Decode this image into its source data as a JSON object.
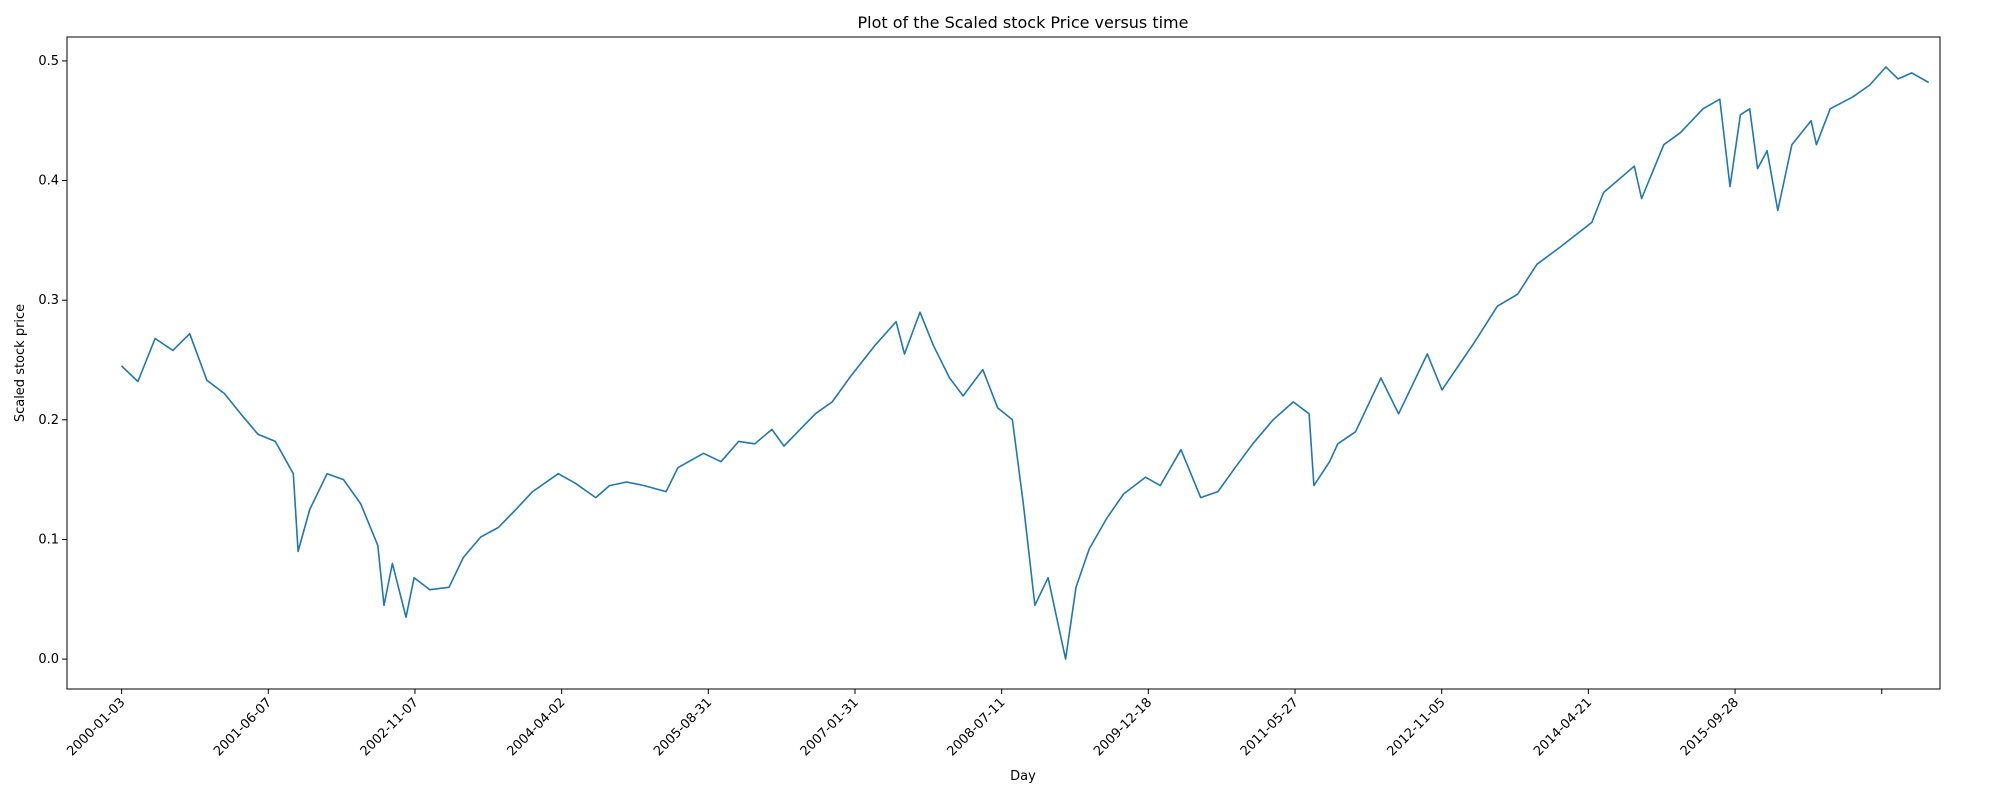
{
  "chart_data": {
    "type": "line",
    "title": "Plot of the Scaled stock Price versus time",
    "xlabel": "Day",
    "ylabel": "Scaled stock price",
    "ylim": [
      -0.025,
      0.52
    ],
    "yticks": [
      "0.0",
      "0.1",
      "0.2",
      "0.3",
      "0.4",
      "0.5"
    ],
    "xticks": [
      "2000-01-03",
      "2001-06-07",
      "2002-11-07",
      "2004-04-02",
      "2005-08-31",
      "2007-01-31",
      "2008-07-11",
      "2009-12-18",
      "2011-05-27",
      "2012-11-05",
      "2014-04-21",
      "2015-09-28",
      ""
    ],
    "xlim": [
      "1999-06-23",
      "2017-09-09"
    ],
    "grid": false,
    "series_color": "#1f77b4",
    "series": [
      {
        "x": [
          "2000-01-03",
          "2000-03-01",
          "2000-05-01",
          "2000-07-03",
          "2000-09-01",
          "2000-11-01",
          "2001-01-02",
          "2001-03-01",
          "2001-05-01",
          "2001-07-02",
          "2001-09-04",
          "2001-09-21",
          "2001-11-01",
          "2002-01-02",
          "2002-03-01",
          "2002-05-01",
          "2002-07-01",
          "2002-07-23",
          "2002-08-22",
          "2002-10-09",
          "2002-11-07",
          "2003-01-02",
          "2003-03-11",
          "2003-05-01",
          "2003-07-01",
          "2003-09-02",
          "2003-11-03",
          "2004-01-02",
          "2004-04-02",
          "2004-06-01",
          "2004-08-13",
          "2004-10-01",
          "2004-12-01",
          "2005-02-01",
          "2005-04-20",
          "2005-06-01",
          "2005-08-31",
          "2005-11-01",
          "2006-01-03",
          "2006-03-01",
          "2006-05-01",
          "2006-06-13",
          "2006-08-01",
          "2006-10-02",
          "2006-12-01",
          "2007-01-31",
          "2007-03-05",
          "2007-05-01",
          "2007-07-16",
          "2007-08-15",
          "2007-10-09",
          "2007-11-26",
          "2008-01-22",
          "2008-03-10",
          "2008-05-19",
          "2008-07-11",
          "2008-09-01",
          "2008-10-10",
          "2008-11-20",
          "2009-01-06",
          "2009-03-09",
          "2009-04-15",
          "2009-06-01",
          "2009-08-03",
          "2009-10-01",
          "2009-12-18",
          "2010-02-08",
          "2010-04-23",
          "2010-07-02",
          "2010-09-01",
          "2010-11-01",
          "2011-01-03",
          "2011-03-16",
          "2011-05-27",
          "2011-07-22",
          "2011-08-08",
          "2011-10-03",
          "2011-11-01",
          "2012-01-03",
          "2012-04-02",
          "2012-06-04",
          "2012-09-14",
          "2012-11-05",
          "2013-01-02",
          "2013-03-01",
          "2013-05-21",
          "2013-08-01",
          "2013-10-08",
          "2014-01-02",
          "2014-04-21",
          "2014-06-02",
          "2014-09-19",
          "2014-10-15",
          "2015-01-02",
          "2015-03-02",
          "2015-05-21",
          "2015-07-20",
          "2015-08-25",
          "2015-10-01",
          "2015-11-03",
          "2015-12-01",
          "2016-01-04",
          "2016-02-11",
          "2016-04-01",
          "2016-06-08",
          "2016-06-27",
          "2016-08-15",
          "2016-11-04",
          "2017-01-03",
          "2017-03-01",
          "2017-04-13",
          "2017-06-01",
          "2017-07-31"
        ],
        "y": [
          0.245,
          0.232,
          0.268,
          0.258,
          0.272,
          0.233,
          0.222,
          0.205,
          0.188,
          0.182,
          0.155,
          0.09,
          0.125,
          0.155,
          0.15,
          0.13,
          0.095,
          0.045,
          0.08,
          0.035,
          0.068,
          0.058,
          0.06,
          0.085,
          0.102,
          0.11,
          0.125,
          0.14,
          0.155,
          0.147,
          0.135,
          0.145,
          0.148,
          0.145,
          0.14,
          0.16,
          0.172,
          0.165,
          0.182,
          0.18,
          0.192,
          0.178,
          0.19,
          0.205,
          0.215,
          0.235,
          0.245,
          0.262,
          0.282,
          0.255,
          0.29,
          0.262,
          0.235,
          0.22,
          0.242,
          0.21,
          0.2,
          0.13,
          0.045,
          0.068,
          0.0,
          0.06,
          0.092,
          0.118,
          0.138,
          0.152,
          0.145,
          0.175,
          0.135,
          0.14,
          0.16,
          0.18,
          0.2,
          0.215,
          0.205,
          0.145,
          0.165,
          0.18,
          0.19,
          0.235,
          0.205,
          0.255,
          0.225,
          0.245,
          0.265,
          0.295,
          0.305,
          0.33,
          0.345,
          0.365,
          0.39,
          0.412,
          0.385,
          0.43,
          0.44,
          0.46,
          0.468,
          0.395,
          0.455,
          0.46,
          0.41,
          0.425,
          0.375,
          0.43,
          0.45,
          0.43,
          0.46,
          0.47,
          0.48,
          0.495,
          0.485,
          0.49,
          0.482
        ]
      }
    ]
  }
}
